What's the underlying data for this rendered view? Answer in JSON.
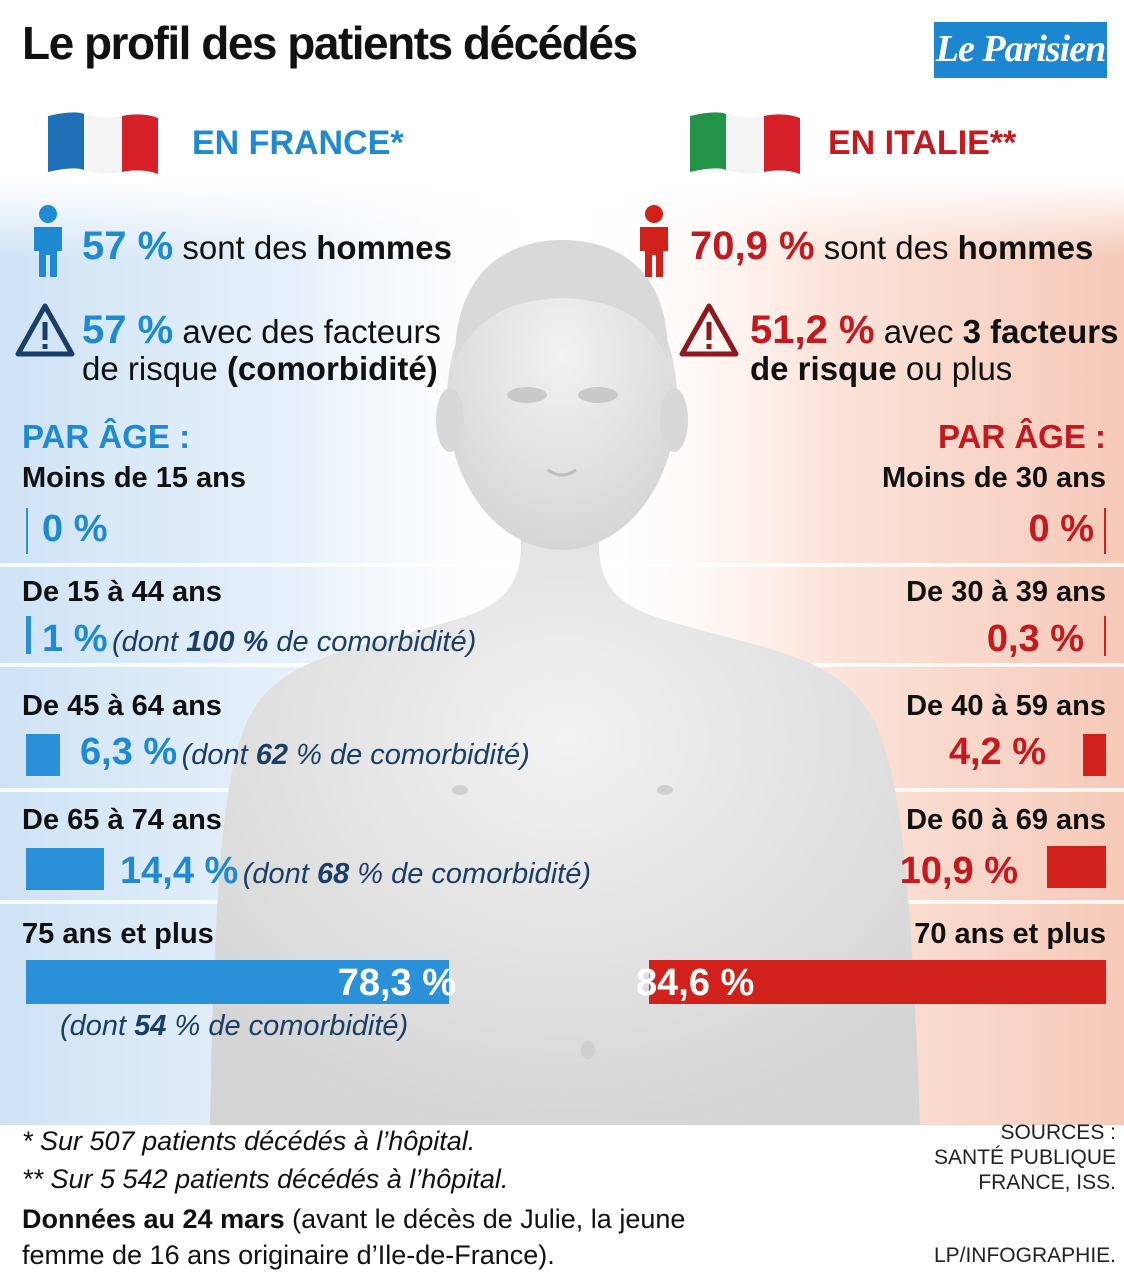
{
  "title": "Le profil des patients décédés",
  "logo": "Le Parisien",
  "colors": {
    "france": "#1f8ad2",
    "italy": "#c3191f",
    "france_bar": "#2a90d8",
    "italy_bar": "#d0221b"
  },
  "france": {
    "heading": "EN FRANCE*",
    "men": {
      "value": "57 %",
      "text": "sont des",
      "bold": "hommes",
      "icon": "person-icon"
    },
    "risk": {
      "value": "57 %",
      "line1": "avec des facteurs",
      "line2_pre": "de risque ",
      "line2_bold": "(comorbidité)",
      "icon": "warning-icon"
    },
    "age_heading": "PAR ÂGE :",
    "ages": [
      {
        "label": "Moins de 15 ans",
        "value": 0,
        "pct": "0 %"
      },
      {
        "label": "De 15 à 44 ans",
        "value": 1,
        "pct": "1 %",
        "com_pre": "(dont ",
        "com_val": "100 %",
        "com_post": " de comorbidité)"
      },
      {
        "label": "De 45 à 64 ans",
        "value": 6.3,
        "pct": "6,3 %",
        "com_pre": "(dont ",
        "com_val": "62",
        "com_post": " % de comorbidité)"
      },
      {
        "label": "De 65 à 74 ans",
        "value": 14.4,
        "pct": "14,4 %",
        "com_pre": "(dont ",
        "com_val": "68",
        "com_post": " % de comorbidité)"
      },
      {
        "label": "75 ans et plus",
        "value": 78.3,
        "pct": "78,3 %",
        "com_pre": "(dont ",
        "com_val": "54",
        "com_post": " % de comorbidité)"
      }
    ]
  },
  "italy": {
    "heading": "EN ITALIE**",
    "men": {
      "value": "70,9 %",
      "text": "sont des",
      "bold": "hommes",
      "icon": "person-icon"
    },
    "risk": {
      "value": "51,2 %",
      "line1_pre": "avec ",
      "line1_bold": "3 facteurs",
      "line2_bold": "de risque",
      "line2_post": " ou plus",
      "icon": "warning-icon"
    },
    "age_heading": "PAR ÂGE :",
    "ages": [
      {
        "label": "Moins de 30 ans",
        "value": 0,
        "pct": "0 %"
      },
      {
        "label": "De 30 à 39 ans",
        "value": 0.3,
        "pct": "0,3 %"
      },
      {
        "label": "De 40 à 59 ans",
        "value": 4.2,
        "pct": "4,2 %"
      },
      {
        "label": "De 60 à 69 ans",
        "value": 10.9,
        "pct": "10,9 %"
      },
      {
        "label": "70 ans et plus",
        "value": 84.6,
        "pct": "84,6 %"
      }
    ]
  },
  "chart_data": {
    "type": "bar",
    "title": "Le profil des patients décédés",
    "series": [
      {
        "name": "EN FRANCE*",
        "categories": [
          "Moins de 15 ans",
          "De 15 à 44 ans",
          "De 45 à 64 ans",
          "De 65 à 74 ans",
          "75 ans et plus"
        ],
        "values": [
          0,
          1,
          6.3,
          14.4,
          78.3
        ],
        "comorbidity": [
          null,
          100,
          62,
          68,
          54
        ]
      },
      {
        "name": "EN ITALIE**",
        "categories": [
          "Moins de 30 ans",
          "De 30 à 39 ans",
          "De 40 à 59 ans",
          "De 60 à 69 ans",
          "70 ans et plus"
        ],
        "values": [
          0,
          0.3,
          4.2,
          10.9,
          84.6
        ]
      }
    ],
    "xlabel": "",
    "ylabel": ""
  },
  "footnotes": {
    "f1": "* Sur 507 patients décédés à l’hôpital.",
    "f2": "** Sur 5 542 patients décédés à l’hôpital.",
    "f3_bold": "Données au 24 mars",
    "f3_rest": " (avant le décès de Julie, la jeune",
    "f4": "femme de 16 ans originaire d’Ile-de-France)."
  },
  "sources": {
    "line1": "SOURCES :",
    "line2": "SANTÉ PUBLIQUE",
    "line3": "FRANCE, ISS."
  },
  "credit": "LP/INFOGRAPHIE."
}
